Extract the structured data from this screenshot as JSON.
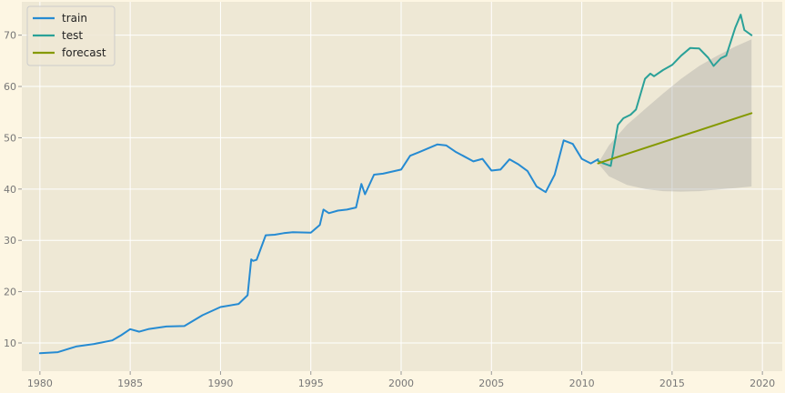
{
  "chart_data": {
    "type": "line",
    "title": "",
    "xlabel": "",
    "ylabel": "",
    "xlim": [
      1979,
      2021.1
    ],
    "ylim": [
      4.5,
      76.5
    ],
    "x_ticks": [
      1980,
      1985,
      1990,
      1995,
      2000,
      2005,
      2010,
      2015,
      2020
    ],
    "x_tick_labels": [
      "1980",
      "1985",
      "1990",
      "1995",
      "2000",
      "2005",
      "2010",
      "2015",
      "2020"
    ],
    "y_ticks": [
      10,
      20,
      30,
      40,
      50,
      60,
      70
    ],
    "y_tick_labels": [
      "10",
      "20",
      "30",
      "40",
      "50",
      "60",
      "70"
    ],
    "grid": true,
    "legend_position": "top-left",
    "colors": {
      "figure_bg": "#fdf6e3",
      "axes_bg": "#eee8d5",
      "grid": "#ffffff",
      "train": "#268bd2",
      "test": "#2aa198",
      "forecast": "#859900",
      "ci_fill": "#9d9d9d"
    },
    "series": [
      {
        "name": "train",
        "key": "train",
        "x": [
          1980,
          1981,
          1982,
          1983,
          1984,
          1984.5,
          1985,
          1985.5,
          1986,
          1987,
          1988,
          1989,
          1990,
          1991,
          1991.5,
          1991.7,
          1991.8,
          1992,
          1992.5,
          1993,
          1993.5,
          1994,
          1995,
          1995.5,
          1995.7,
          1996,
          1996.5,
          1997,
          1997.5,
          1997.8,
          1998,
          1998.5,
          1999,
          2000,
          2000.5,
          2001,
          2002,
          2002.5,
          2003,
          2004,
          2004.5,
          2005,
          2005.5,
          2006,
          2006.5,
          2007,
          2007.5,
          2008,
          2008.5,
          2009,
          2009.5,
          2010,
          2010.5,
          2010.9
        ],
        "y": [
          8,
          8.2,
          9.3,
          9.8,
          10.5,
          11.5,
          12.7,
          12.2,
          12.7,
          13.2,
          13.3,
          15.4,
          17,
          17.6,
          19.3,
          26.3,
          26,
          26.2,
          31,
          31.1,
          31.4,
          31.6,
          31.5,
          33,
          36,
          35.3,
          35.8,
          36,
          36.4,
          41,
          39,
          42.8,
          43,
          43.8,
          46.5,
          47.2,
          48.7,
          48.5,
          47.3,
          45.4,
          45.9,
          43.6,
          43.8,
          45.8,
          44.8,
          43.5,
          40.5,
          39.4,
          42.8,
          49.5,
          48.8,
          45.9,
          45,
          45.8
        ]
      },
      {
        "name": "test",
        "key": "test",
        "x": [
          2010.9,
          2011.2,
          2011.6,
          2012,
          2012.3,
          2012.7,
          2013,
          2013.5,
          2013.8,
          2014,
          2014.5,
          2015,
          2015.5,
          2016,
          2016.5,
          2017,
          2017.3,
          2017.7,
          2018,
          2018.5,
          2018.8,
          2019,
          2019.4
        ],
        "y": [
          45.5,
          45,
          44.5,
          52.5,
          53.8,
          54.5,
          55.5,
          61.5,
          62.5,
          62,
          63.2,
          64.2,
          66,
          67.5,
          67.4,
          65.6,
          64,
          65.5,
          66,
          71.5,
          74,
          71,
          70
        ]
      },
      {
        "name": "forecast",
        "key": "forecast",
        "x": [
          2010.9,
          2019.4
        ],
        "y": [
          45,
          54.8
        ]
      }
    ],
    "confidence_band": {
      "x": [
        2010.9,
        2011.5,
        2012.5,
        2013.5,
        2014.5,
        2015.5,
        2016.5,
        2017.5,
        2018.5,
        2019.4
      ],
      "lower": [
        45,
        42.5,
        40.8,
        40.0,
        39.6,
        39.5,
        39.6,
        39.9,
        40.2,
        40.5
      ],
      "upper": [
        45,
        48.5,
        52.5,
        55.6,
        58.6,
        61.5,
        64.0,
        66.0,
        67.8,
        69.2
      ]
    }
  }
}
